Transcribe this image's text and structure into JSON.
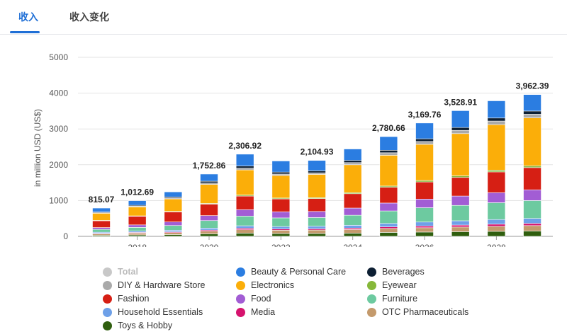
{
  "tabs": [
    {
      "label": "收入",
      "active": true
    },
    {
      "label": "收入变化",
      "active": false
    }
  ],
  "chart_data": {
    "type": "bar",
    "stacked": true,
    "ylabel": "in million USD (US$)",
    "ylim": [
      0,
      5000
    ],
    "yticks": [
      0,
      1000,
      2000,
      3000,
      4000,
      5000
    ],
    "grid": true,
    "legend_position": "bottom",
    "categories": [
      2017,
      2018,
      2019,
      2020,
      2021,
      2022,
      2023,
      2024,
      2025,
      2026,
      2027,
      2028,
      2029
    ],
    "xtick_labels": [
      "2018",
      "2020",
      "2022",
      "2024",
      "2026",
      "2028"
    ],
    "total_labels": [
      {
        "year": 2017,
        "label": "815.07"
      },
      {
        "year": 2018,
        "label": "1,012.69"
      },
      {
        "year": 2020,
        "label": "1,752.86"
      },
      {
        "year": 2021,
        "label": "2,306.92"
      },
      {
        "year": 2023,
        "label": "2,104.93"
      },
      {
        "year": 2025,
        "label": "2,780.66"
      },
      {
        "year": 2026,
        "label": "3,169.76"
      },
      {
        "year": 2027,
        "label": "3,528.91"
      },
      {
        "year": 2029,
        "label": "3,962.39"
      }
    ],
    "series": [
      {
        "name": "Toys & Hobby",
        "color": "#2f5e0e",
        "values": [
          30,
          40,
          50,
          70,
          90,
          80,
          80,
          90,
          110,
          120,
          130,
          140,
          150
        ]
      },
      {
        "name": "OTC Pharmaceuticals",
        "color": "#c49a6c",
        "values": [
          40,
          50,
          55,
          75,
          95,
          90,
          95,
          100,
          110,
          120,
          130,
          140,
          150
        ]
      },
      {
        "name": "Media",
        "color": "#d6136e",
        "values": [
          15,
          20,
          22,
          30,
          40,
          35,
          35,
          40,
          45,
          50,
          55,
          60,
          60
        ]
      },
      {
        "name": "Household Essentials",
        "color": "#6ea0e8",
        "values": [
          30,
          40,
          45,
          55,
          70,
          70,
          75,
          80,
          95,
          110,
          120,
          130,
          140
        ]
      },
      {
        "name": "Furniture",
        "color": "#6dcaa0",
        "values": [
          80,
          100,
          130,
          210,
          270,
          240,
          240,
          280,
          350,
          400,
          430,
          470,
          500
        ]
      },
      {
        "name": "Food",
        "color": "#a25dd4",
        "values": [
          50,
          70,
          100,
          140,
          180,
          170,
          170,
          200,
          220,
          240,
          260,
          280,
          300
        ]
      },
      {
        "name": "Fashion",
        "color": "#d61f14",
        "values": [
          190,
          240,
          280,
          320,
          380,
          360,
          360,
          400,
          440,
          480,
          520,
          580,
          620
        ]
      },
      {
        "name": "Eyewear",
        "color": "#86b83a",
        "values": [
          10,
          12,
          15,
          20,
          30,
          25,
          25,
          30,
          35,
          40,
          45,
          50,
          50
        ]
      },
      {
        "name": "Electronics",
        "color": "#fbae09",
        "values": [
          200,
          250,
          350,
          530,
          700,
          630,
          650,
          780,
          860,
          1010,
          1180,
          1270,
          1340
        ]
      },
      {
        "name": "DIY & Hardware Store",
        "color": "#aaaaaa",
        "values": [
          15,
          20,
          25,
          40,
          50,
          40,
          45,
          60,
          70,
          80,
          90,
          100,
          100
        ]
      },
      {
        "name": "Beverages",
        "color": "#0d1f33",
        "values": [
          20,
          25,
          30,
          50,
          60,
          55,
          55,
          60,
          70,
          75,
          80,
          85,
          90
        ]
      },
      {
        "name": "Beauty & Personal Care",
        "color": "#2b7de1",
        "values": [
          110,
          130,
          140,
          200,
          330,
          310,
          290,
          320,
          380,
          440,
          470,
          480,
          460
        ]
      }
    ],
    "legend": [
      {
        "name": "Total",
        "color": "#c8c8c8",
        "disabled": true
      },
      {
        "name": "Beauty & Personal Care",
        "color": "#2b7de1"
      },
      {
        "name": "Beverages",
        "color": "#0d1f33"
      },
      {
        "name": "DIY & Hardware Store",
        "color": "#aaaaaa"
      },
      {
        "name": "Electronics",
        "color": "#fbae09"
      },
      {
        "name": "Eyewear",
        "color": "#86b83a"
      },
      {
        "name": "Fashion",
        "color": "#d61f14"
      },
      {
        "name": "Food",
        "color": "#a25dd4"
      },
      {
        "name": "Furniture",
        "color": "#6dcaa0"
      },
      {
        "name": "Household Essentials",
        "color": "#6ea0e8"
      },
      {
        "name": "Media",
        "color": "#d6136e"
      },
      {
        "name": "OTC Pharmaceuticals",
        "color": "#c49a6c"
      },
      {
        "name": "Toys & Hobby",
        "color": "#2f5e0e"
      }
    ]
  }
}
